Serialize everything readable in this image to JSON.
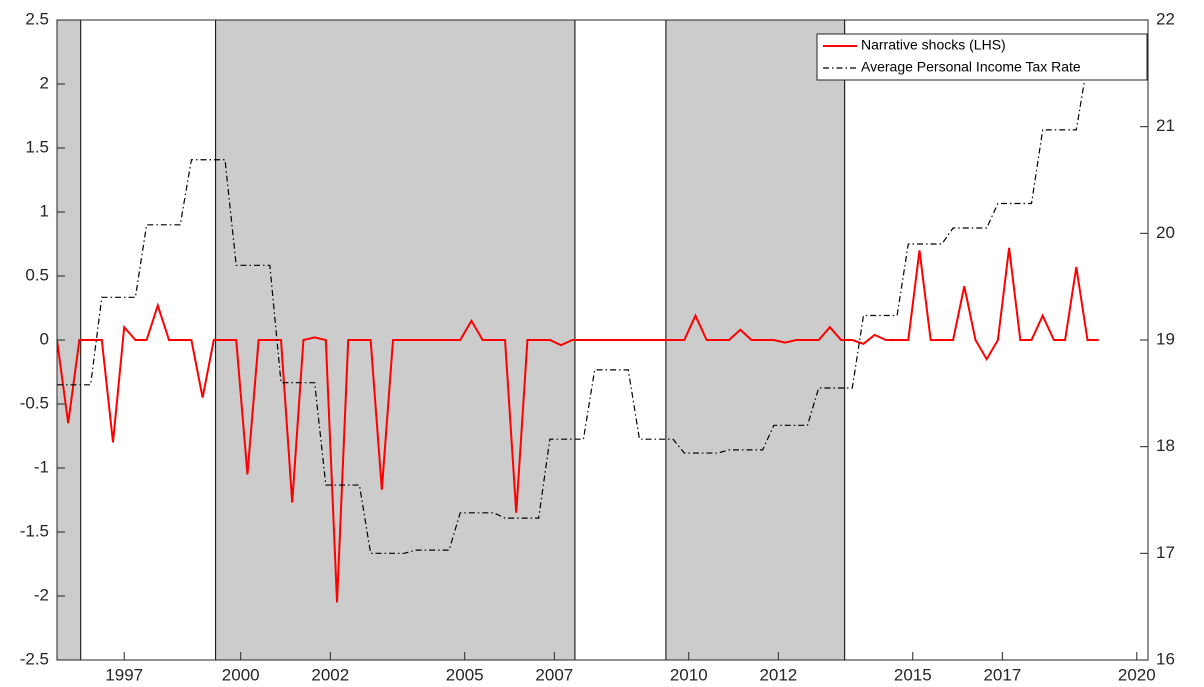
{
  "chart_data": {
    "type": "line",
    "x": [
      1995.9,
      1996.15,
      1996.4,
      1996.65,
      1996.9,
      1997.15,
      1997.4,
      1997.65,
      1997.9,
      1998.15,
      1998.4,
      1998.65,
      1998.9,
      1999.15,
      1999.4,
      1999.65,
      1999.9,
      2000.15,
      2000.4,
      2000.65,
      2000.9,
      2001.15,
      2001.4,
      2001.65,
      2001.9,
      2002.15,
      2002.4,
      2002.65,
      2002.9,
      2003.15,
      2003.4,
      2003.65,
      2003.9,
      2004.15,
      2004.4,
      2004.65,
      2004.9,
      2005.15,
      2005.4,
      2005.65,
      2005.9,
      2006.15,
      2006.4,
      2006.65,
      2006.9,
      2007.15,
      2007.4,
      2007.65,
      2007.9,
      2008.15,
      2008.4,
      2008.65,
      2008.9,
      2009.15,
      2009.4,
      2009.65,
      2009.9,
      2010.15,
      2010.4,
      2010.65,
      2010.9,
      2011.15,
      2011.4,
      2011.65,
      2011.9,
      2012.15,
      2012.4,
      2012.65,
      2012.9,
      2013.15,
      2013.4,
      2013.65,
      2013.9,
      2014.15,
      2014.4,
      2014.65,
      2014.9,
      2015.15,
      2015.4,
      2015.65,
      2015.9,
      2016.15,
      2016.4,
      2016.65,
      2016.9,
      2017.15,
      2017.4,
      2017.65,
      2017.9,
      2018.15,
      2018.4,
      2018.65,
      2018.9,
      2019.15
    ],
    "series": [
      {
        "name": "Narrative shocks (LHS)",
        "color": "#ff0000",
        "axis": "y",
        "dash": "solid",
        "values": [
          0,
          -0.65,
          0,
          0,
          0,
          -0.8,
          0.1,
          0,
          0,
          0.27,
          0,
          0,
          0,
          -0.45,
          0,
          0,
          0,
          -1.05,
          0,
          0,
          0,
          -1.27,
          0,
          0.02,
          0,
          -2.05,
          0,
          0,
          0,
          -1.17,
          0,
          0,
          0,
          0,
          0,
          0,
          0,
          0.15,
          0,
          0,
          0,
          -1.35,
          0,
          0,
          0,
          -0.04,
          0,
          0,
          0,
          0,
          0,
          0,
          0,
          0,
          0,
          0,
          0,
          0.19,
          0,
          0,
          0,
          0.08,
          0,
          0,
          0,
          -0.02,
          0,
          0,
          0,
          0.1,
          0,
          0,
          -0.03,
          0.04,
          0,
          0,
          0,
          0.7,
          0,
          0,
          0,
          0.42,
          0,
          -0.15,
          0,
          0.72,
          0,
          0,
          0.19,
          0,
          0,
          0.57,
          0,
          0
        ]
      },
      {
        "name": "Average Personal Income Tax Rate",
        "color": "#000000",
        "axis": "y2",
        "dash": "dashdot",
        "values": [
          18.58,
          18.58,
          18.58,
          18.58,
          19.4,
          19.4,
          19.4,
          19.4,
          20.08,
          20.08,
          20.08,
          20.08,
          20.69,
          20.69,
          20.69,
          20.69,
          19.7,
          19.7,
          19.7,
          19.7,
          18.6,
          18.6,
          18.6,
          18.6,
          17.64,
          17.64,
          17.64,
          17.64,
          17.0,
          17.0,
          17.0,
          17.0,
          17.03,
          17.03,
          17.03,
          17.03,
          17.38,
          17.38,
          17.38,
          17.38,
          17.33,
          17.33,
          17.33,
          17.33,
          18.07,
          18.07,
          18.07,
          18.07,
          18.72,
          18.72,
          18.72,
          18.72,
          18.07,
          18.07,
          18.07,
          18.07,
          17.94,
          17.94,
          17.94,
          17.94,
          17.97,
          17.97,
          17.97,
          17.97,
          18.2,
          18.2,
          18.2,
          18.2,
          18.55,
          18.55,
          18.55,
          18.55,
          19.23,
          19.23,
          19.23,
          19.23,
          19.9,
          19.9,
          19.9,
          19.9,
          20.05,
          20.05,
          20.05,
          20.05,
          20.28,
          20.28,
          20.28,
          20.28,
          20.97,
          20.97,
          20.97,
          20.97,
          21.6,
          21.6
        ]
      }
    ],
    "shaded_regions": [
      [
        1995.9,
        1996.43
      ],
      [
        1999.44,
        2007.46
      ],
      [
        2009.49,
        2013.48
      ]
    ],
    "shade_color": "#cccccc",
    "xlim": [
      1995.9,
      2020.25
    ],
    "xticks": [
      {
        "value": 1997.4,
        "label": "1997"
      },
      2000,
      2002,
      2005,
      2007,
      2010,
      2012,
      2015,
      2017,
      2020
    ],
    "ylim": [
      -2.5,
      2.5
    ],
    "yticks": [
      -2.5,
      -2,
      -1.5,
      -1,
      -0.5,
      0,
      0.5,
      1,
      1.5,
      2,
      2.5
    ],
    "y2lim": [
      16,
      22
    ],
    "y2ticks": [
      16,
      17,
      18,
      19,
      20,
      21,
      22
    ],
    "grid": false,
    "legend": "top-right"
  }
}
